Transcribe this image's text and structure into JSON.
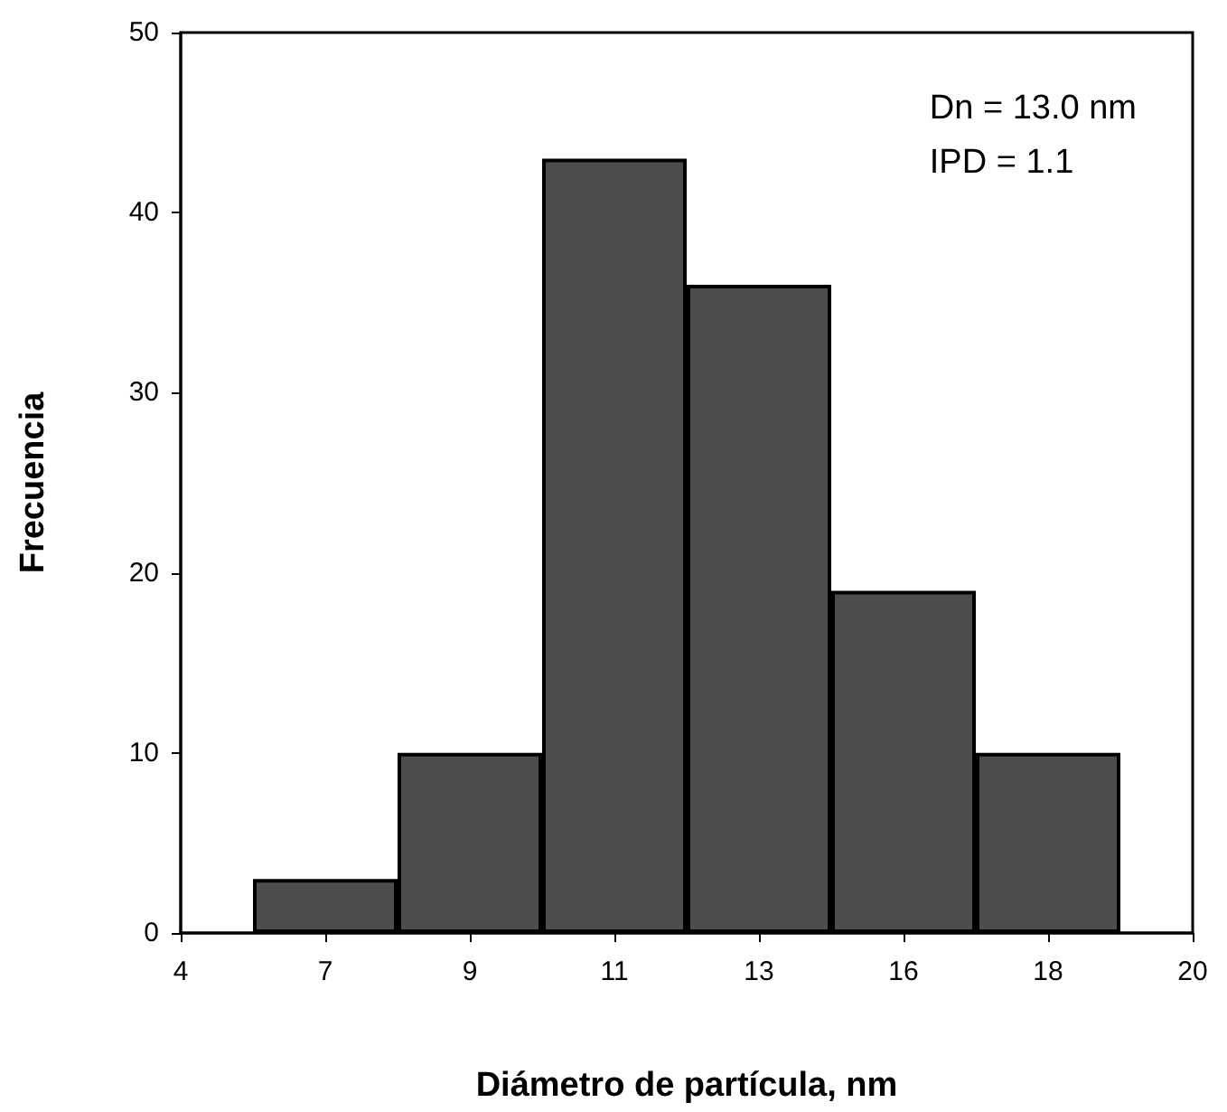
{
  "chart_data": {
    "type": "bar",
    "xlabel": "Diámetro de partícula, nm",
    "ylabel": "Frecuencia",
    "categories": [
      "4",
      "7",
      "9",
      "11",
      "13",
      "16",
      "18",
      "20"
    ],
    "values": [
      null,
      3,
      10,
      43,
      36,
      19,
      10,
      null
    ],
    "color": "#4d4d4d",
    "ylim": [
      0,
      50
    ],
    "yticks": [
      0,
      10,
      20,
      30,
      40,
      50
    ],
    "annotations": [
      "Dn = 13.0 nm",
      "IPD = 1.1"
    ]
  }
}
